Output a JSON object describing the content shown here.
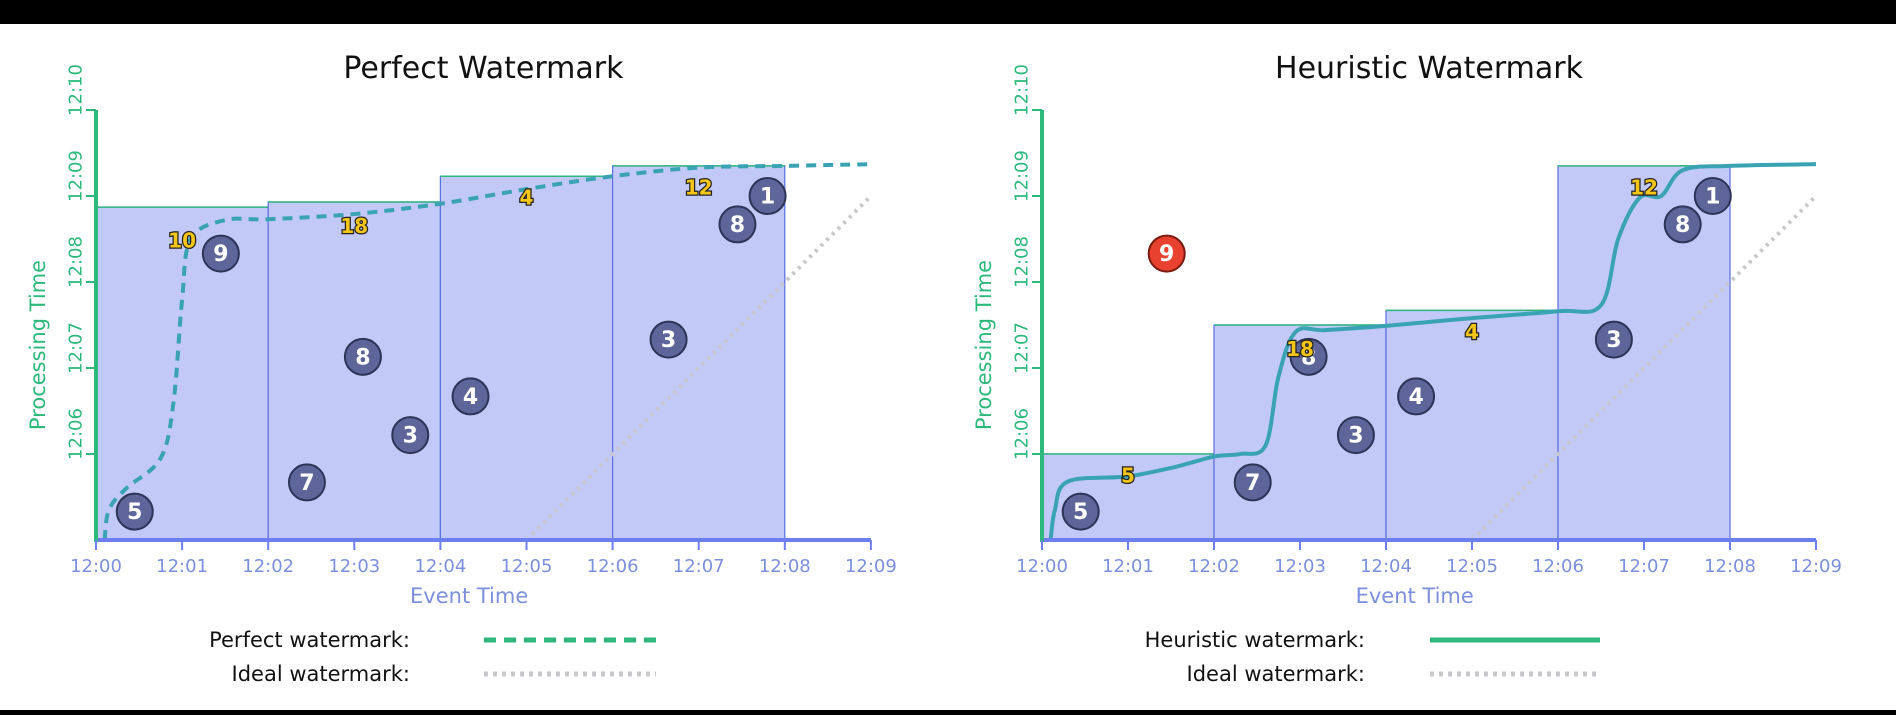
{
  "colors": {
    "pane_fill": "#c3c9f7",
    "pane_stroke": "#5a6fe0",
    "event_axis": "#6d7ff0",
    "processing_axis": "#2db87c",
    "watermark": "#2db87c",
    "watermark_curve": "#3aa3b3",
    "ideal": "#c8c8cc",
    "point_fill": "#5d6599",
    "point_stroke": "#2e3458",
    "late_point_fill": "#e8412f",
    "late_label": "#f5c518"
  },
  "chart_data": [
    {
      "type": "scatter",
      "title": "Perfect Watermark",
      "xlabel": "Event Time",
      "ylabel": "Processing Time",
      "xticks": [
        "12:00",
        "12:01",
        "12:02",
        "12:03",
        "12:04",
        "12:05",
        "12:06",
        "12:07",
        "12:08",
        "12:09"
      ],
      "yticks": [
        "12:06",
        "12:07",
        "12:08",
        "12:09",
        "12:10"
      ],
      "xlim": [
        0,
        9
      ],
      "ylim": [
        5,
        10
      ],
      "panes": [
        {
          "start": 0,
          "end": 2,
          "top": 8.87
        },
        {
          "start": 2,
          "end": 4,
          "top": 8.93
        },
        {
          "start": 4,
          "end": 6,
          "top": 9.23
        },
        {
          "start": 6,
          "end": 8,
          "top": 9.35
        }
      ],
      "points": [
        {
          "label": "5",
          "x": 0.45,
          "y": 5.33
        },
        {
          "label": "9",
          "x": 1.45,
          "y": 8.33
        },
        {
          "label": "7",
          "x": 2.45,
          "y": 5.67
        },
        {
          "label": "8",
          "x": 3.1,
          "y": 7.13
        },
        {
          "label": "3",
          "x": 3.65,
          "y": 6.22
        },
        {
          "label": "4",
          "x": 4.35,
          "y": 6.67
        },
        {
          "label": "3",
          "x": 6.65,
          "y": 7.33
        },
        {
          "label": "8",
          "x": 7.45,
          "y": 8.67
        },
        {
          "label": "1",
          "x": 7.8,
          "y": 9.0
        }
      ],
      "pane_results": [
        {
          "label": "10",
          "x": 1.0,
          "y": 8.48
        },
        {
          "label": "18",
          "x": 3.0,
          "y": 8.65
        },
        {
          "label": "4",
          "x": 5.0,
          "y": 8.98
        },
        {
          "label": "12",
          "x": 7.0,
          "y": 9.1
        }
      ],
      "watermark": {
        "style": "dashed",
        "points": [
          [
            0.1,
            5.0
          ],
          [
            0.15,
            5.35
          ],
          [
            0.35,
            5.6
          ],
          [
            0.75,
            5.95
          ],
          [
            0.9,
            6.6
          ],
          [
            1.0,
            7.8
          ],
          [
            1.1,
            8.5
          ],
          [
            1.5,
            8.72
          ],
          [
            2.0,
            8.73
          ],
          [
            3.0,
            8.79
          ],
          [
            4.0,
            8.91
          ],
          [
            5.0,
            9.08
          ],
          [
            6.0,
            9.23
          ],
          [
            7.0,
            9.33
          ],
          [
            8.0,
            9.35
          ],
          [
            9.0,
            9.37
          ]
        ]
      },
      "ideal": {
        "points": [
          [
            5.0,
            5.0
          ],
          [
            9.0,
            9.0
          ]
        ]
      },
      "legend": [
        {
          "label": "Perfect watermark:",
          "style": "dashed"
        },
        {
          "label": "Ideal watermark:",
          "style": "dotted"
        }
      ]
    },
    {
      "type": "scatter",
      "title": "Heuristic Watermark",
      "xlabel": "Event Time",
      "ylabel": "Processing Time",
      "xticks": [
        "12:00",
        "12:01",
        "12:02",
        "12:03",
        "12:04",
        "12:05",
        "12:06",
        "12:07",
        "12:08",
        "12:09"
      ],
      "yticks": [
        "12:06",
        "12:07",
        "12:08",
        "12:09",
        "12:10"
      ],
      "xlim": [
        0,
        9
      ],
      "ylim": [
        5,
        10
      ],
      "panes": [
        {
          "start": 0,
          "end": 2,
          "top": 6.0
        },
        {
          "start": 2,
          "end": 4,
          "top": 7.5
        },
        {
          "start": 4,
          "end": 6,
          "top": 7.67
        },
        {
          "start": 6,
          "end": 8,
          "top": 9.35
        }
      ],
      "points": [
        {
          "label": "5",
          "x": 0.45,
          "y": 5.33
        },
        {
          "label": "9",
          "x": 1.45,
          "y": 8.33,
          "late": true
        },
        {
          "label": "7",
          "x": 2.45,
          "y": 5.67
        },
        {
          "label": "8",
          "x": 3.1,
          "y": 7.13
        },
        {
          "label": "3",
          "x": 3.65,
          "y": 6.22
        },
        {
          "label": "4",
          "x": 4.35,
          "y": 6.67
        },
        {
          "label": "3",
          "x": 6.65,
          "y": 7.33
        },
        {
          "label": "8",
          "x": 7.45,
          "y": 8.67
        },
        {
          "label": "1",
          "x": 7.8,
          "y": 9.0
        }
      ],
      "pane_results": [
        {
          "label": "5",
          "x": 1.0,
          "y": 5.75
        },
        {
          "label": "18",
          "x": 3.0,
          "y": 7.22
        },
        {
          "label": "4",
          "x": 5.0,
          "y": 7.42
        },
        {
          "label": "12",
          "x": 7.0,
          "y": 9.1
        }
      ],
      "watermark": {
        "style": "solid",
        "points": [
          [
            0.1,
            5.0
          ],
          [
            0.15,
            5.35
          ],
          [
            0.3,
            5.68
          ],
          [
            1.0,
            5.74
          ],
          [
            1.55,
            5.85
          ],
          [
            2.0,
            5.97
          ],
          [
            2.3,
            6.0
          ],
          [
            2.6,
            6.1
          ],
          [
            2.75,
            6.9
          ],
          [
            2.95,
            7.42
          ],
          [
            3.3,
            7.44
          ],
          [
            4.0,
            7.49
          ],
          [
            5.0,
            7.58
          ],
          [
            6.0,
            7.66
          ],
          [
            6.5,
            7.73
          ],
          [
            6.7,
            8.5
          ],
          [
            6.95,
            8.98
          ],
          [
            7.2,
            9.0
          ],
          [
            7.45,
            9.3
          ],
          [
            8.0,
            9.35
          ],
          [
            9.0,
            9.37
          ]
        ]
      },
      "ideal": {
        "points": [
          [
            5.0,
            5.0
          ],
          [
            9.0,
            9.0
          ]
        ]
      },
      "legend": [
        {
          "label": "Heuristic watermark:",
          "style": "solid"
        },
        {
          "label": "Ideal watermark:",
          "style": "dotted"
        }
      ]
    }
  ]
}
